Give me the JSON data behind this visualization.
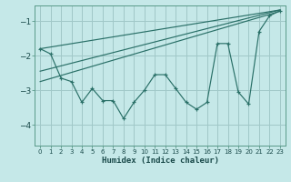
{
  "xlabel": "Humidex (Indice chaleur)",
  "background_color": "#c5e8e8",
  "grid_color": "#a0c8c8",
  "line_color": "#2a7068",
  "spine_color": "#5a9a8a",
  "xlim": [
    -0.5,
    23.5
  ],
  "ylim": [
    -4.6,
    -0.55
  ],
  "yticks": [
    -4,
    -3,
    -2,
    -1
  ],
  "xticks": [
    0,
    1,
    2,
    3,
    4,
    5,
    6,
    7,
    8,
    9,
    10,
    11,
    12,
    13,
    14,
    15,
    16,
    17,
    18,
    19,
    20,
    21,
    22,
    23
  ],
  "main_x": [
    0,
    1,
    2,
    3,
    4,
    5,
    6,
    7,
    8,
    9,
    10,
    11,
    12,
    13,
    14,
    15,
    16,
    17,
    18,
    19,
    20,
    21,
    22,
    23
  ],
  "main_y": [
    -1.8,
    -1.95,
    -2.65,
    -2.75,
    -3.35,
    -2.95,
    -3.3,
    -3.3,
    -3.82,
    -3.35,
    -3.0,
    -2.55,
    -2.55,
    -2.95,
    -3.35,
    -3.55,
    -3.35,
    -1.65,
    -1.65,
    -3.05,
    -3.4,
    -1.3,
    -0.85,
    -0.7
  ],
  "line1_x": [
    0,
    23
  ],
  "line1_y": [
    -1.8,
    -0.68
  ],
  "line2_x": [
    0,
    23
  ],
  "line2_y": [
    -2.45,
    -0.68
  ],
  "line3_x": [
    0,
    23
  ],
  "line3_y": [
    -2.75,
    -0.72
  ]
}
